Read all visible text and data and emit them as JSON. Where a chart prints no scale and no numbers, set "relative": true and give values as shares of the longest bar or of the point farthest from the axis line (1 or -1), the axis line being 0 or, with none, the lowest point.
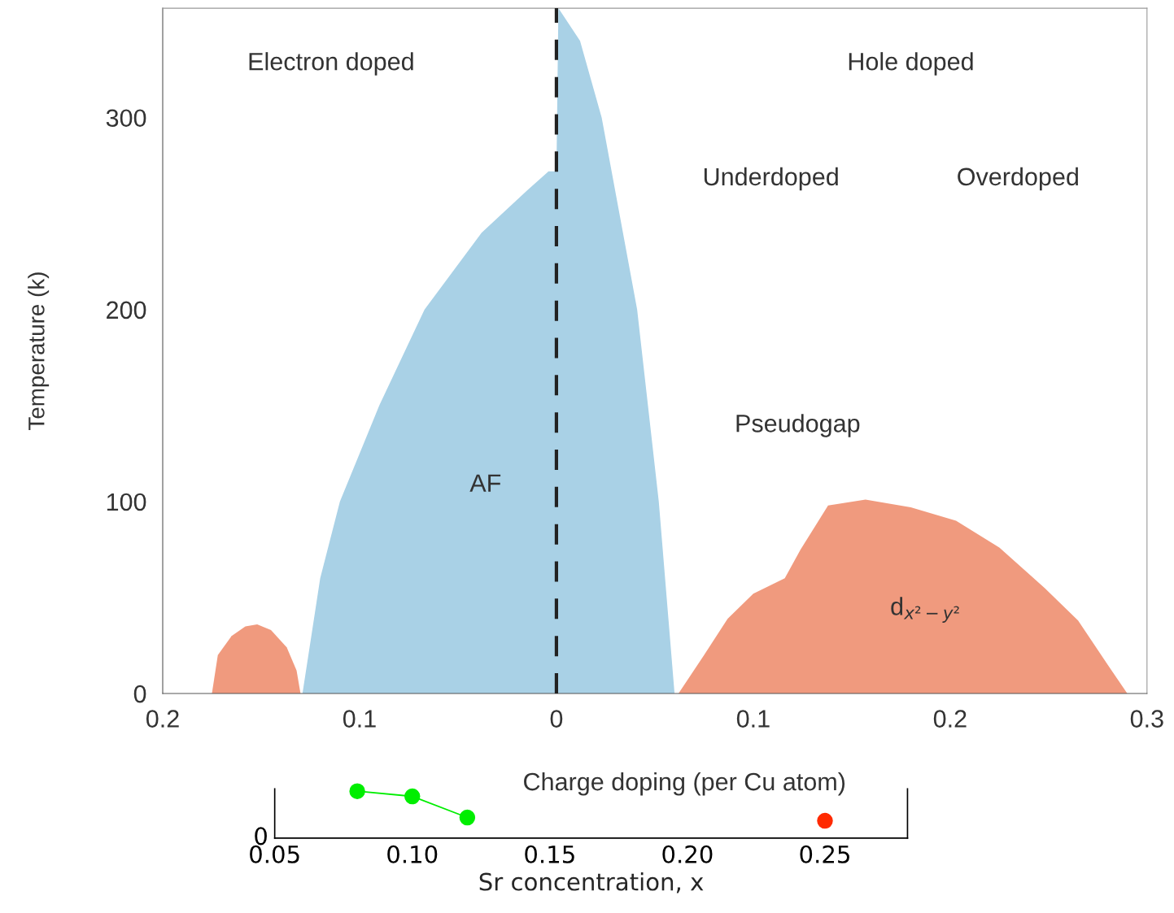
{
  "chart_data": [
    {
      "type": "area",
      "xlabel": "Charge doping (per Cu atom)",
      "ylabel": "Temperature (k)",
      "xlim": [
        -0.2,
        0.3
      ],
      "ylim": [
        0,
        357
      ],
      "xticks": [
        {
          "value": -0.2,
          "label": "0.2"
        },
        {
          "value": -0.1,
          "label": "0.1"
        },
        0,
        0.1,
        0.2,
        0.3
      ],
      "yticks": [
        0,
        100,
        200,
        300
      ],
      "series": [
        {
          "color": "#f09a7e",
          "x": [
            -0.175,
            -0.172,
            -0.165,
            -0.158,
            -0.152,
            -0.145,
            -0.137,
            -0.132,
            -0.13
          ],
          "values": [
            0,
            20,
            30,
            35,
            36,
            33,
            24,
            12,
            0
          ]
        },
        {
          "color": "#a9d1e6",
          "x": [
            -0.129,
            -0.12,
            -0.11,
            -0.09,
            -0.067,
            -0.038,
            -0.015,
            -0.004,
            0,
            0.001,
            0.012,
            0.023,
            0.041,
            0.052,
            0.06
          ],
          "values": [
            0,
            60,
            100,
            150,
            200,
            240,
            262,
            272,
            272,
            357,
            340,
            300,
            200,
            100,
            0
          ]
        },
        {
          "color": "#f09a7e",
          "x": [
            0.062,
            0.075,
            0.087,
            0.1,
            0.116,
            0.124,
            0.138,
            0.157,
            0.18,
            0.203,
            0.225,
            0.248,
            0.265,
            0.28,
            0.29
          ],
          "values": [
            0,
            20,
            39,
            52,
            60,
            75,
            98,
            101,
            97,
            90,
            76,
            55,
            38,
            15,
            0
          ]
        }
      ],
      "ref_lines": [
        {
          "axis": "x",
          "value": 0,
          "color": "#222222",
          "line_style": "dashed"
        }
      ],
      "annotations": [
        "Electron doped",
        "Hole doped",
        "Underdoped",
        "Overdoped",
        "Pseudogap",
        "AF",
        "d$_{x²−y²}$"
      ]
    },
    {
      "type": "line",
      "xlabel": "Sr concentration, x",
      "relative": true,
      "marker": "circle",
      "xlim": [
        0.05,
        0.28
      ],
      "xticks": [
        {
          "value": 0.05,
          "label": "0.05"
        },
        {
          "value": 0.1,
          "label": "0.10"
        },
        {
          "value": 0.15,
          "label": "0.15"
        },
        {
          "value": 0.2,
          "label": "0.20"
        },
        {
          "value": 0.25,
          "label": "0.25"
        }
      ],
      "series": [
        {
          "color": "#00ee00",
          "x": [
            0.08,
            0.1,
            0.12
          ],
          "values": [
            1,
            0.89,
            0.44
          ]
        },
        {
          "color": "#ff2a00",
          "x": [
            0.25
          ],
          "values": [
            0.37
          ]
        }
      ],
      "annotations": [
        "0"
      ]
    }
  ]
}
